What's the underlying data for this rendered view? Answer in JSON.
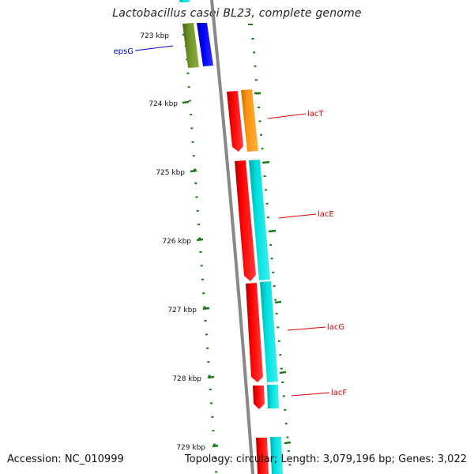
{
  "title": "Lactobacillus casei BL23, complete genome",
  "footer": {
    "accession": "Accession: NC_010999",
    "summary": "Topology: circular; Length: 3,079,196 bp; Genes: 3,022"
  },
  "ticks": [
    {
      "label": "723 kbp"
    },
    {
      "label": "724 kbp"
    },
    {
      "label": "725 kbp"
    },
    {
      "label": "726 kbp"
    },
    {
      "label": "727 kbp"
    },
    {
      "label": "728 kbp"
    },
    {
      "label": "729 kbp"
    }
  ],
  "genes": [
    {
      "name": "epsG",
      "color": "#0000cc"
    },
    {
      "name": "lacT",
      "color": "#dd0000"
    },
    {
      "name": "lacE",
      "color": "#dd0000"
    },
    {
      "name": "lacG",
      "color": "#dd0000"
    },
    {
      "name": "lacF",
      "color": "#dd0000"
    }
  ],
  "colors": {
    "backbone": "#888888",
    "tick": "#1a7a1a",
    "red": "#ff0000",
    "cyan": "#00cccc",
    "orange": "#ff8c00",
    "olive": "#6b8e23",
    "blue": "#0000ee"
  }
}
